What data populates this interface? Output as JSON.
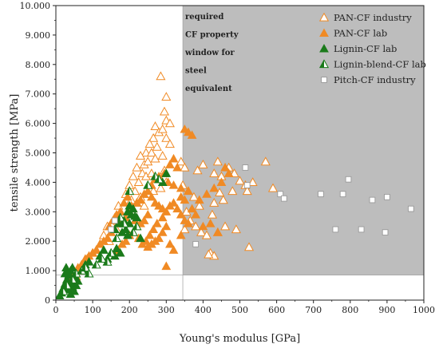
{
  "chart_data": {
    "type": "scatter",
    "xlabel": "Young's modulus [GPa]",
    "ylabel": "tensile strength [MPa]",
    "xlim": [
      0,
      1000
    ],
    "ylim": [
      0,
      10000
    ],
    "x_ticks": [
      "0",
      "100",
      "200",
      "300",
      "400",
      "500",
      "600",
      "700",
      "800",
      "900",
      "1000"
    ],
    "y_ticks": [
      "0",
      "1.000",
      "2.000",
      "3.000",
      "4.000",
      "5.000",
      "6.000",
      "7.000",
      "8.000",
      "9.000",
      "10.000"
    ],
    "x_tick_values": [
      0,
      100,
      200,
      300,
      400,
      500,
      600,
      700,
      800,
      900,
      1000
    ],
    "y_tick_values": [
      0,
      1000,
      2000,
      3000,
      4000,
      5000,
      6000,
      7000,
      8000,
      9000,
      10000
    ],
    "legend_position": "top-right",
    "grid": false,
    "property_window": {
      "x_min": 345,
      "y_min": 850,
      "color": "#bdbdbd",
      "lines": [
        "required",
        "CF property",
        "window for",
        "steel",
        "equivalent"
      ]
    },
    "series": [
      {
        "name": "PAN-CF industry",
        "marker": "triangle-open",
        "color": "#f08a24",
        "points": [
          [
            285,
            7600
          ],
          [
            300,
            6900
          ],
          [
            295,
            6400
          ],
          [
            300,
            6100
          ],
          [
            310,
            6000
          ],
          [
            270,
            5900
          ],
          [
            280,
            5700
          ],
          [
            290,
            5800
          ],
          [
            300,
            5500
          ],
          [
            310,
            5300
          ],
          [
            265,
            5500
          ],
          [
            275,
            5200
          ],
          [
            255,
            5300
          ],
          [
            245,
            5000
          ],
          [
            260,
            5000
          ],
          [
            230,
            4900
          ],
          [
            240,
            4600
          ],
          [
            250,
            4700
          ],
          [
            270,
            4800
          ],
          [
            290,
            4900
          ],
          [
            220,
            4500
          ],
          [
            235,
            4300
          ],
          [
            210,
            4200
          ],
          [
            225,
            4000
          ],
          [
            245,
            4200
          ],
          [
            260,
            4300
          ],
          [
            275,
            4100
          ],
          [
            295,
            4400
          ],
          [
            300,
            4000
          ],
          [
            285,
            3800
          ],
          [
            200,
            3900
          ],
          [
            215,
            3700
          ],
          [
            230,
            3500
          ],
          [
            250,
            3600
          ],
          [
            265,
            3700
          ],
          [
            190,
            3600
          ],
          [
            205,
            3400
          ],
          [
            220,
            3300
          ],
          [
            240,
            3200
          ],
          [
            170,
            3200
          ],
          [
            180,
            2900
          ],
          [
            160,
            2800
          ],
          [
            150,
            2600
          ],
          [
            165,
            2400
          ],
          [
            140,
            2500
          ],
          [
            130,
            2200
          ],
          [
            145,
            2000
          ],
          [
            120,
            1900
          ],
          [
            110,
            1700
          ],
          [
            100,
            1600
          ],
          [
            85,
            1400
          ],
          [
            70,
            1200
          ],
          [
            60,
            1000
          ],
          [
            55,
            800
          ],
          [
            40,
            700
          ],
          [
            340,
            4700
          ],
          [
            350,
            4500
          ],
          [
            345,
            3900
          ],
          [
            360,
            3700
          ],
          [
            375,
            3500
          ],
          [
            390,
            3200
          ],
          [
            355,
            3000
          ],
          [
            365,
            2700
          ],
          [
            380,
            2500
          ],
          [
            395,
            2300
          ],
          [
            410,
            2200
          ],
          [
            350,
            2400
          ],
          [
            420,
            1600
          ],
          [
            430,
            1500
          ],
          [
            415,
            1550
          ],
          [
            440,
            4700
          ],
          [
            400,
            4600
          ],
          [
            385,
            4400
          ],
          [
            430,
            4300
          ],
          [
            450,
            4200
          ],
          [
            470,
            4500
          ],
          [
            485,
            4300
          ],
          [
            500,
            4050
          ],
          [
            480,
            3700
          ],
          [
            445,
            3650
          ],
          [
            430,
            3300
          ],
          [
            455,
            3400
          ],
          [
            425,
            2900
          ],
          [
            460,
            2500
          ],
          [
            440,
            2300
          ],
          [
            490,
            2400
          ],
          [
            515,
            3900
          ],
          [
            520,
            3700
          ],
          [
            535,
            4000
          ],
          [
            570,
            4700
          ],
          [
            590,
            3800
          ],
          [
            525,
            1800
          ]
        ]
      },
      {
        "name": "PAN-CF lab",
        "marker": "triangle-filled",
        "color": "#f08a24",
        "points": [
          [
            350,
            5800
          ],
          [
            360,
            5700
          ],
          [
            370,
            5600
          ],
          [
            320,
            4800
          ],
          [
            330,
            4500
          ],
          [
            310,
            4600
          ],
          [
            295,
            4300
          ],
          [
            280,
            4200
          ],
          [
            270,
            4100
          ],
          [
            305,
            4000
          ],
          [
            320,
            3900
          ],
          [
            340,
            3800
          ],
          [
            260,
            3900
          ],
          [
            250,
            3700
          ],
          [
            240,
            3600
          ],
          [
            230,
            3400
          ],
          [
            220,
            3300
          ],
          [
            210,
            3100
          ],
          [
            200,
            3000
          ],
          [
            190,
            2800
          ],
          [
            180,
            2700
          ],
          [
            170,
            2600
          ],
          [
            160,
            2400
          ],
          [
            150,
            2300
          ],
          [
            140,
            2100
          ],
          [
            130,
            2000
          ],
          [
            120,
            1900
          ],
          [
            110,
            1700
          ],
          [
            100,
            1600
          ],
          [
            90,
            1500
          ],
          [
            80,
            1400
          ],
          [
            70,
            1200
          ],
          [
            60,
            1100
          ],
          [
            55,
            900
          ],
          [
            45,
            800
          ],
          [
            260,
            3500
          ],
          [
            270,
            3300
          ],
          [
            280,
            3200
          ],
          [
            290,
            3100
          ],
          [
            300,
            3000
          ],
          [
            310,
            3200
          ],
          [
            320,
            3300
          ],
          [
            330,
            3100
          ],
          [
            340,
            2900
          ],
          [
            350,
            2700
          ],
          [
            250,
            2900
          ],
          [
            240,
            2700
          ],
          [
            230,
            2600
          ],
          [
            220,
            2500
          ],
          [
            210,
            2300
          ],
          [
            200,
            2200
          ],
          [
            190,
            2000
          ],
          [
            180,
            1900
          ],
          [
            170,
            1700
          ],
          [
            160,
            1600
          ],
          [
            300,
            2500
          ],
          [
            290,
            2300
          ],
          [
            280,
            2100
          ],
          [
            270,
            2000
          ],
          [
            260,
            1900
          ],
          [
            250,
            1800
          ],
          [
            310,
            1900
          ],
          [
            320,
            1700
          ],
          [
            300,
            1150
          ],
          [
            340,
            2200
          ],
          [
            360,
            2600
          ],
          [
            380,
            2900
          ],
          [
            400,
            2500
          ],
          [
            420,
            2600
          ],
          [
            440,
            2300
          ],
          [
            460,
            4500
          ],
          [
            470,
            4300
          ],
          [
            450,
            4000
          ],
          [
            430,
            3800
          ],
          [
            410,
            3600
          ],
          [
            390,
            3400
          ],
          [
            370,
            3100
          ],
          [
            360,
            3700
          ],
          [
            350,
            3400
          ],
          [
            340,
            3500
          ],
          [
            290,
            2800
          ],
          [
            275,
            2600
          ],
          [
            265,
            2400
          ],
          [
            255,
            2200
          ],
          [
            245,
            2000
          ],
          [
            235,
            1900
          ],
          [
            225,
            2100
          ],
          [
            215,
            2700
          ],
          [
            205,
            3200
          ],
          [
            195,
            3500
          ],
          [
            185,
            3300
          ],
          [
            175,
            3000
          ],
          [
            165,
            2900
          ],
          [
            155,
            2700
          ],
          [
            145,
            2500
          ]
        ]
      },
      {
        "name": "Lignin-CF lab",
        "marker": "triangle-filled",
        "color": "#1a7a1a",
        "points": [
          [
            10,
            150
          ],
          [
            15,
            250
          ],
          [
            20,
            400
          ],
          [
            25,
            550
          ],
          [
            30,
            700
          ],
          [
            35,
            850
          ],
          [
            40,
            1000
          ],
          [
            45,
            1100
          ],
          [
            30,
            1000
          ],
          [
            25,
            900
          ],
          [
            40,
            600
          ],
          [
            45,
            450
          ],
          [
            50,
            300
          ],
          [
            55,
            500
          ],
          [
            60,
            650
          ],
          [
            35,
            350
          ],
          [
            40,
            200
          ],
          [
            28,
            1100
          ],
          [
            33,
            950
          ],
          [
            50,
            800
          ],
          [
            80,
            1200
          ],
          [
            85,
            1000
          ],
          [
            90,
            1300
          ],
          [
            120,
            1500
          ],
          [
            130,
            1700
          ],
          [
            140,
            1400
          ],
          [
            160,
            1500
          ],
          [
            165,
            1750
          ],
          [
            175,
            1600
          ],
          [
            180,
            2300
          ],
          [
            190,
            2400
          ],
          [
            195,
            2200
          ],
          [
            200,
            2600
          ],
          [
            205,
            2900
          ],
          [
            210,
            3100
          ],
          [
            215,
            2850
          ],
          [
            220,
            2800
          ],
          [
            230,
            2100
          ],
          [
            160,
            2400
          ],
          [
            170,
            2600
          ],
          [
            185,
            2700
          ],
          [
            195,
            3000
          ],
          [
            200,
            3200
          ],
          [
            290,
            4000
          ],
          [
            300,
            4300
          ]
        ]
      },
      {
        "name": "Lignin-blend-CF lab",
        "marker": "triangle-half",
        "color": "#1a7a1a",
        "points": [
          [
            20,
            300
          ],
          [
            30,
            500
          ],
          [
            45,
            700
          ],
          [
            55,
            900
          ],
          [
            70,
            1000
          ],
          [
            80,
            1100
          ],
          [
            90,
            900
          ],
          [
            110,
            1200
          ],
          [
            125,
            1400
          ],
          [
            140,
            1300
          ],
          [
            150,
            1600
          ],
          [
            165,
            2100
          ],
          [
            175,
            2800
          ],
          [
            185,
            2600
          ],
          [
            200,
            3700
          ],
          [
            210,
            2300
          ],
          [
            220,
            2500
          ],
          [
            250,
            3900
          ],
          [
            270,
            4200
          ],
          [
            280,
            4100
          ]
        ]
      },
      {
        "name": "Pitch-CF industry",
        "marker": "square-open",
        "color": "#999999",
        "points": [
          [
            150,
            2400
          ],
          [
            160,
            2700
          ],
          [
            380,
            1900
          ],
          [
            515,
            4500
          ],
          [
            520,
            3900
          ],
          [
            610,
            3600
          ],
          [
            620,
            3450
          ],
          [
            720,
            3600
          ],
          [
            760,
            2400
          ],
          [
            780,
            3600
          ],
          [
            795,
            4100
          ],
          [
            830,
            2400
          ],
          [
            860,
            3400
          ],
          [
            895,
            2300
          ],
          [
            900,
            3500
          ],
          [
            965,
            3100
          ]
        ]
      }
    ]
  }
}
